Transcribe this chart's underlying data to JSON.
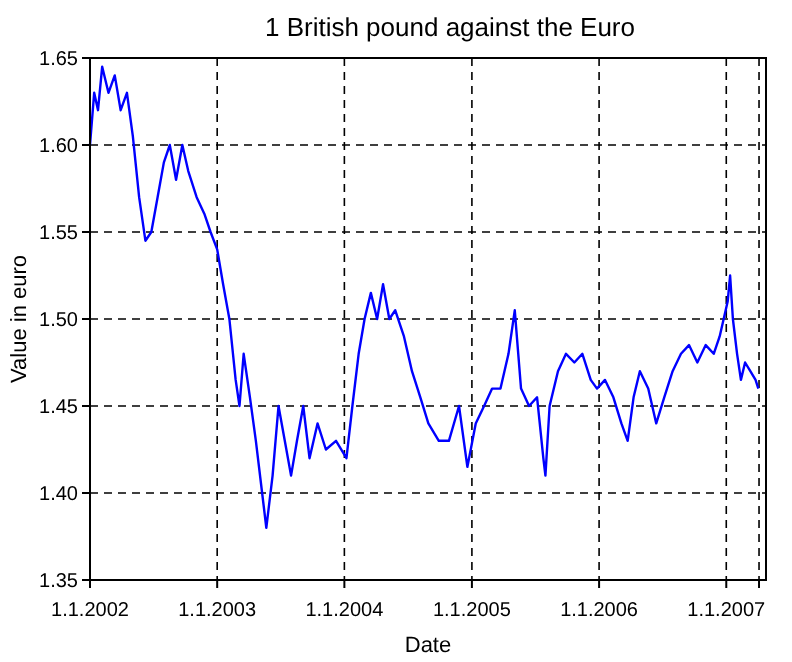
{
  "chart_data": {
    "type": "line",
    "title": "1 British pound against the Euro",
    "xlabel": "Date",
    "ylabel": "Value in euro",
    "xlim": [
      "2002-01-01",
      "2007-04-25"
    ],
    "xticks": [
      {
        "value": "2002-01-01",
        "label": "1.1.2002"
      },
      {
        "value": "2003-01-01",
        "label": "1.1.2003"
      },
      {
        "value": "2004-01-01",
        "label": "1.1.2004"
      },
      {
        "value": "2005-01-01",
        "label": "1.1.2005"
      },
      {
        "value": "2006-01-01",
        "label": "1.1.2006"
      },
      {
        "value": "2007-01-01",
        "label": "1.1.2007"
      },
      {
        "value": "2007-04-05",
        "label": null
      }
    ],
    "ylim": [
      1.35,
      1.65
    ],
    "yticks": [
      1.35,
      {
        "value": 1.4,
        "label": "1.40"
      },
      1.45,
      {
        "value": 1.5,
        "label": "1.50"
      },
      1.55,
      {
        "value": 1.6,
        "label": "1.60"
      },
      1.65
    ],
    "grid": true,
    "marker": "none",
    "line_style": "solid",
    "x": [
      "2002-01-01",
      "2002-01-13",
      "2002-01-24",
      "2002-02-05",
      "2002-02-23",
      "2002-03-13",
      "2002-03-30",
      "2002-04-17",
      "2002-05-04",
      "2002-05-22",
      "2002-06-09",
      "2002-06-26",
      "2002-07-14",
      "2002-08-01",
      "2002-08-18",
      "2002-09-05",
      "2002-09-23",
      "2002-10-10",
      "2002-11-03",
      "2002-11-26",
      "2002-12-13",
      "2003-01-01",
      "2003-01-18",
      "2003-02-05",
      "2003-02-23",
      "2003-03-06",
      "2003-03-18",
      "2003-04-05",
      "2003-04-22",
      "2003-05-10",
      "2003-05-22",
      "2003-06-09",
      "2003-06-26",
      "2003-07-14",
      "2003-08-01",
      "2003-08-18",
      "2003-09-05",
      "2003-09-23",
      "2003-10-16",
      "2003-11-09",
      "2003-12-08",
      "2004-01-07",
      "2004-01-24",
      "2004-02-11",
      "2004-02-28",
      "2004-03-17",
      "2004-04-04",
      "2004-04-21",
      "2004-05-09",
      "2004-05-26",
      "2004-06-20",
      "2004-07-13",
      "2004-08-06",
      "2004-08-29",
      "2004-09-28",
      "2004-10-27",
      "2004-11-25",
      "2004-12-19",
      "2005-01-12",
      "2005-02-05",
      "2005-02-28",
      "2005-03-24",
      "2005-04-16",
      "2005-05-04",
      "2005-05-22",
      "2005-06-14",
      "2005-07-07",
      "2005-07-25",
      "2005-07-31",
      "2005-08-12",
      "2005-09-05",
      "2005-09-28",
      "2005-10-22",
      "2005-11-14",
      "2005-12-08",
      "2005-12-26",
      "2006-01-18",
      "2006-02-11",
      "2006-03-06",
      "2006-03-24",
      "2006-04-10",
      "2006-04-28",
      "2006-05-22",
      "2006-06-14",
      "2006-07-07",
      "2006-07-31",
      "2006-08-24",
      "2006-09-16",
      "2006-10-10",
      "2006-11-03",
      "2006-11-26",
      "2006-12-13",
      "2007-01-05",
      "2007-01-12",
      "2007-01-20",
      "2007-02-01",
      "2007-02-12",
      "2007-02-24",
      "2007-03-11",
      "2007-03-26",
      "2007-04-03"
    ],
    "series": [
      {
        "color": "#0000ff",
        "values": [
          1.6,
          1.63,
          1.62,
          1.645,
          1.63,
          1.64,
          1.62,
          1.63,
          1.605,
          1.57,
          1.545,
          1.55,
          1.57,
          1.59,
          1.6,
          1.58,
          1.6,
          1.585,
          1.57,
          1.56,
          1.55,
          1.54,
          1.52,
          1.5,
          1.465,
          1.45,
          1.48,
          1.455,
          1.43,
          1.4,
          1.38,
          1.41,
          1.45,
          1.43,
          1.41,
          1.43,
          1.45,
          1.42,
          1.44,
          1.425,
          1.43,
          1.42,
          1.45,
          1.48,
          1.5,
          1.515,
          1.5,
          1.52,
          1.5,
          1.505,
          1.49,
          1.47,
          1.455,
          1.44,
          1.43,
          1.43,
          1.45,
          1.415,
          1.44,
          1.45,
          1.46,
          1.46,
          1.48,
          1.505,
          1.46,
          1.45,
          1.455,
          1.42,
          1.41,
          1.45,
          1.47,
          1.48,
          1.475,
          1.48,
          1.465,
          1.46,
          1.465,
          1.455,
          1.44,
          1.43,
          1.455,
          1.47,
          1.46,
          1.44,
          1.455,
          1.47,
          1.48,
          1.485,
          1.475,
          1.485,
          1.48,
          1.49,
          1.51,
          1.525,
          1.5,
          1.48,
          1.465,
          1.475,
          1.47,
          1.465,
          1.46
        ]
      }
    ]
  }
}
